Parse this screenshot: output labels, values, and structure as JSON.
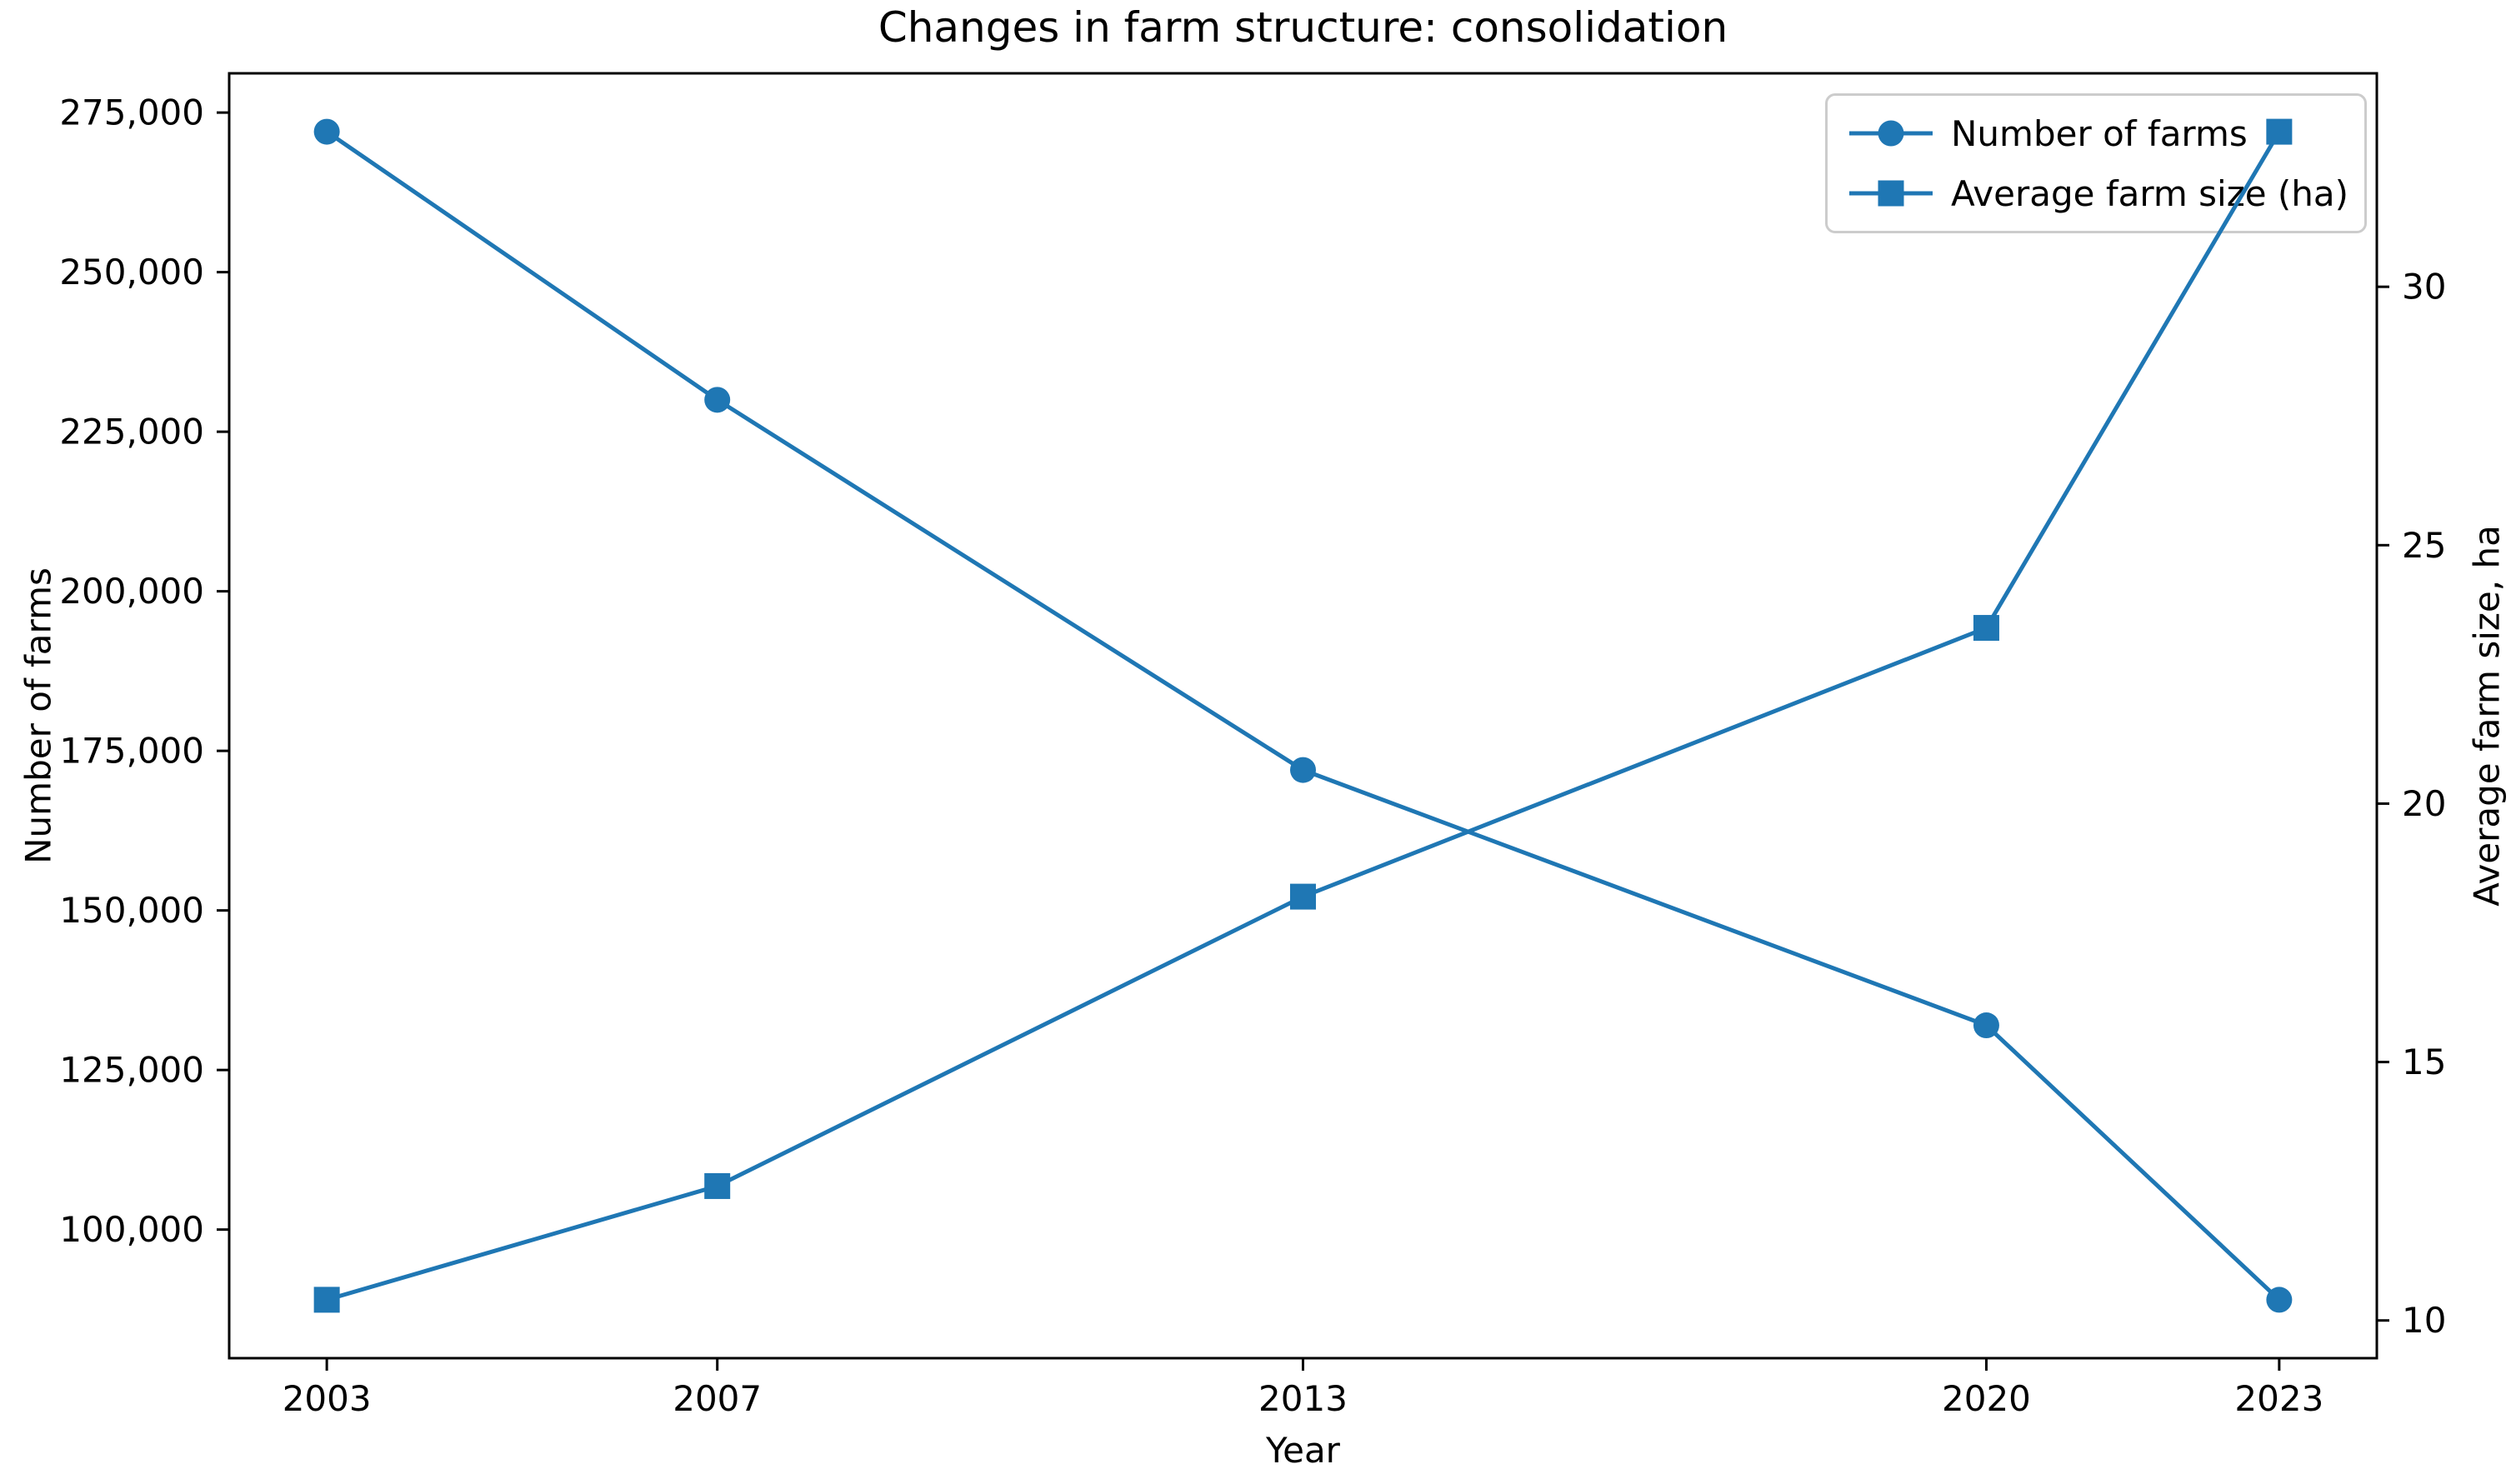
{
  "chart_data": {
    "type": "line",
    "title": "Changes in farm structure: consolidation",
    "xlabel": "Year",
    "ylabel_left": "Number of farms",
    "ylabel_right": "Average farm size, ha",
    "x": [
      2003,
      2007,
      2013,
      2020,
      2023
    ],
    "xtick_labels": [
      "2003",
      "2007",
      "2013",
      "2020",
      "2023"
    ],
    "series": [
      {
        "name": "Number of farms",
        "axis": "left",
        "marker": "circle",
        "color": "#1f77b4",
        "values": [
          272000,
          230000,
          172000,
          132000,
          89000
        ]
      },
      {
        "name": "Average farm size (ha)",
        "axis": "right",
        "marker": "square",
        "color": "#1f77b4",
        "values": [
          10.4,
          12.6,
          18.2,
          23.4,
          33.0
        ]
      }
    ],
    "axes": {
      "xlim": [
        2002,
        2024
      ],
      "ylim_left": [
        79850,
        281150
      ],
      "ylim_right": [
        9.27,
        34.13
      ],
      "yticks_left": {
        "values": [
          100000,
          125000,
          150000,
          175000,
          200000,
          225000,
          250000,
          275000
        ],
        "labels": [
          "100,000",
          "125,000",
          "150,000",
          "175,000",
          "200,000",
          "225,000",
          "250,000",
          "275,000"
        ]
      },
      "yticks_right": {
        "values": [
          10,
          15,
          20,
          25,
          30
        ],
        "labels": [
          "10",
          "15",
          "20",
          "25",
          "30"
        ]
      },
      "grid": false
    },
    "legend": {
      "position": "upper right"
    },
    "line_color": "#1f77b4",
    "text_color": "#000000",
    "spine_color": "#000000"
  }
}
